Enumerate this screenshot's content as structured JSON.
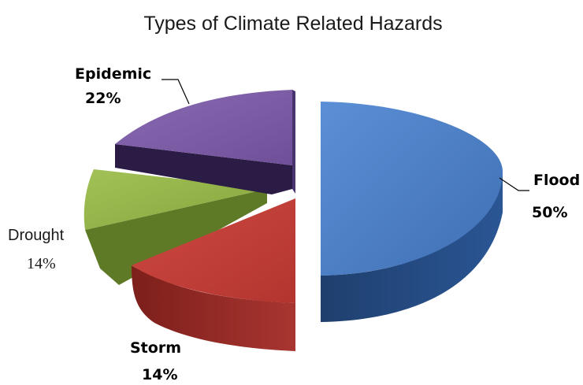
{
  "chart_data": {
    "type": "pie",
    "title": "Types of Climate Related Hazards",
    "exploded": true,
    "three_d": true,
    "legend": "none",
    "slices": [
      {
        "name": "Flood",
        "value": 50,
        "label": "50%",
        "color": "#4b7cc0"
      },
      {
        "name": "Storm",
        "value": 14,
        "label": "14%",
        "color": "#bb3b35"
      },
      {
        "name": "Drought",
        "value": 14,
        "label": "14%",
        "color": "#92b046"
      },
      {
        "name": "Epidemic",
        "value": 22,
        "label": "22%",
        "color": "#7a5ba3"
      }
    ]
  }
}
